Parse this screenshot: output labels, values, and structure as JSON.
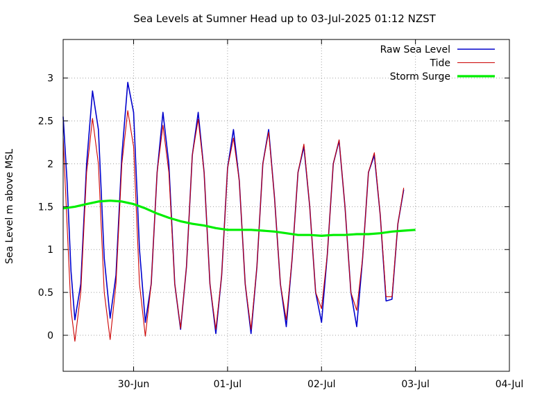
{
  "chart_data": {
    "type": "line",
    "title": "Sea Levels at Sumner Head up to 03-Jul-2025 01:12 NZST",
    "ylabel": "Sea Level m above MSL",
    "xlabel": "",
    "xlim": [
      "2025-06-29 06:00",
      "2025-07-04 00:00"
    ],
    "ylim": [
      -0.42,
      3.45
    ],
    "yticks": [
      0,
      0.5,
      1,
      1.5,
      2,
      2.5,
      3
    ],
    "xticks": [
      {
        "date": "2025-06-30 00:00",
        "label": "30-Jun"
      },
      {
        "date": "2025-07-01 00:00",
        "label": "01-Jul"
      },
      {
        "date": "2025-07-02 00:00",
        "label": "02-Jul"
      },
      {
        "date": "2025-07-03 00:00",
        "label": "03-Jul"
      },
      {
        "date": "2025-07-04 00:00",
        "label": "04-Jul"
      }
    ],
    "grid": true,
    "legend_position": "top-right",
    "series": [
      {
        "name": "Raw Sea Level",
        "color": "#0000cc",
        "points": [
          [
            "2025-06-29 06:00",
            2.55
          ],
          [
            "2025-06-29 07:00",
            1.8
          ],
          [
            "2025-06-29 08:00",
            0.75
          ],
          [
            "2025-06-29 09:00",
            0.18
          ],
          [
            "2025-06-29 10:30",
            0.6
          ],
          [
            "2025-06-29 12:00",
            2.0
          ],
          [
            "2025-06-29 13:30",
            2.85
          ],
          [
            "2025-06-29 15:00",
            2.4
          ],
          [
            "2025-06-29 16:30",
            0.9
          ],
          [
            "2025-06-29 18:00",
            0.2
          ],
          [
            "2025-06-29 19:30",
            0.7
          ],
          [
            "2025-06-29 21:00",
            2.1
          ],
          [
            "2025-06-29 22:30",
            2.95
          ],
          [
            "2025-06-30 00:00",
            2.6
          ],
          [
            "2025-06-30 01:30",
            1.0
          ],
          [
            "2025-06-30 03:00",
            0.15
          ],
          [
            "2025-06-30 04:30",
            0.6
          ],
          [
            "2025-06-30 06:00",
            1.9
          ],
          [
            "2025-06-30 07:30",
            2.6
          ],
          [
            "2025-06-30 09:00",
            2.0
          ],
          [
            "2025-06-30 10:30",
            0.6
          ],
          [
            "2025-06-30 12:00",
            0.07
          ],
          [
            "2025-06-30 13:30",
            0.8
          ],
          [
            "2025-06-30 15:00",
            2.1
          ],
          [
            "2025-06-30 16:30",
            2.6
          ],
          [
            "2025-06-30 18:00",
            1.9
          ],
          [
            "2025-06-30 19:30",
            0.6
          ],
          [
            "2025-06-30 21:00",
            0.02
          ],
          [
            "2025-06-30 22:30",
            0.7
          ],
          [
            "2025-07-01 00:00",
            1.95
          ],
          [
            "2025-07-01 01:30",
            2.4
          ],
          [
            "2025-07-01 03:00",
            1.8
          ],
          [
            "2025-07-01 04:30",
            0.6
          ],
          [
            "2025-07-01 06:00",
            0.02
          ],
          [
            "2025-07-01 07:30",
            0.8
          ],
          [
            "2025-07-01 09:00",
            2.0
          ],
          [
            "2025-07-01 10:30",
            2.4
          ],
          [
            "2025-07-01 12:00",
            1.6
          ],
          [
            "2025-07-01 13:30",
            0.6
          ],
          [
            "2025-07-01 15:00",
            0.1
          ],
          [
            "2025-07-01 16:30",
            0.9
          ],
          [
            "2025-07-01 18:00",
            1.9
          ],
          [
            "2025-07-01 19:30",
            2.2
          ],
          [
            "2025-07-01 21:00",
            1.5
          ],
          [
            "2025-07-01 22:30",
            0.5
          ],
          [
            "2025-07-02 00:00",
            0.15
          ],
          [
            "2025-07-02 01:30",
            0.95
          ],
          [
            "2025-07-02 03:00",
            2.0
          ],
          [
            "2025-07-02 04:30",
            2.27
          ],
          [
            "2025-07-02 06:00",
            1.5
          ],
          [
            "2025-07-02 07:30",
            0.5
          ],
          [
            "2025-07-02 09:00",
            0.1
          ],
          [
            "2025-07-02 10:30",
            0.9
          ],
          [
            "2025-07-02 12:00",
            1.9
          ],
          [
            "2025-07-02 13:30",
            2.1
          ],
          [
            "2025-07-02 15:00",
            1.4
          ],
          [
            "2025-07-02 16:30",
            0.4
          ],
          [
            "2025-07-02 18:00",
            0.42
          ],
          [
            "2025-07-02 19:30",
            1.3
          ],
          [
            "2025-07-02 21:00",
            1.7
          ]
        ]
      },
      {
        "name": "Tide",
        "color": "#cc0000",
        "points": [
          [
            "2025-06-29 06:00",
            2.3
          ],
          [
            "2025-06-29 07:00",
            1.3
          ],
          [
            "2025-06-29 08:00",
            0.3
          ],
          [
            "2025-06-29 09:00",
            -0.07
          ],
          [
            "2025-06-29 10:30",
            0.5
          ],
          [
            "2025-06-29 12:00",
            1.9
          ],
          [
            "2025-06-29 13:30",
            2.53
          ],
          [
            "2025-06-29 15:00",
            2.0
          ],
          [
            "2025-06-29 16:30",
            0.5
          ],
          [
            "2025-06-29 18:00",
            -0.05
          ],
          [
            "2025-06-29 19:30",
            0.6
          ],
          [
            "2025-06-29 21:00",
            2.0
          ],
          [
            "2025-06-29 22:30",
            2.62
          ],
          [
            "2025-06-30 00:00",
            2.2
          ],
          [
            "2025-06-30 01:30",
            0.6
          ],
          [
            "2025-06-30 03:00",
            -0.01
          ],
          [
            "2025-06-30 04:30",
            0.6
          ],
          [
            "2025-06-30 06:00",
            1.9
          ],
          [
            "2025-06-30 07:30",
            2.45
          ],
          [
            "2025-06-30 09:00",
            1.9
          ],
          [
            "2025-06-30 10:30",
            0.6
          ],
          [
            "2025-06-30 12:00",
            0.08
          ],
          [
            "2025-06-30 13:30",
            0.8
          ],
          [
            "2025-06-30 15:00",
            2.1
          ],
          [
            "2025-06-30 16:30",
            2.52
          ],
          [
            "2025-06-30 18:00",
            1.9
          ],
          [
            "2025-06-30 19:30",
            0.6
          ],
          [
            "2025-06-30 21:00",
            0.07
          ],
          [
            "2025-06-30 22:30",
            0.7
          ],
          [
            "2025-07-01 00:00",
            1.95
          ],
          [
            "2025-07-01 01:30",
            2.3
          ],
          [
            "2025-07-01 03:00",
            1.8
          ],
          [
            "2025-07-01 04:30",
            0.6
          ],
          [
            "2025-07-01 06:00",
            0.07
          ],
          [
            "2025-07-01 07:30",
            0.8
          ],
          [
            "2025-07-01 09:00",
            2.0
          ],
          [
            "2025-07-01 10:30",
            2.37
          ],
          [
            "2025-07-01 12:00",
            1.6
          ],
          [
            "2025-07-01 13:30",
            0.6
          ],
          [
            "2025-07-01 15:00",
            0.18
          ],
          [
            "2025-07-01 16:30",
            0.9
          ],
          [
            "2025-07-01 18:00",
            1.9
          ],
          [
            "2025-07-01 19:30",
            2.23
          ],
          [
            "2025-07-01 21:00",
            1.5
          ],
          [
            "2025-07-01 22:30",
            0.5
          ],
          [
            "2025-07-02 00:00",
            0.31
          ],
          [
            "2025-07-02 01:30",
            0.95
          ],
          [
            "2025-07-02 03:00",
            2.0
          ],
          [
            "2025-07-02 04:30",
            2.28
          ],
          [
            "2025-07-02 06:00",
            1.5
          ],
          [
            "2025-07-02 07:30",
            0.5
          ],
          [
            "2025-07-02 09:00",
            0.29
          ],
          [
            "2025-07-02 10:30",
            0.9
          ],
          [
            "2025-07-02 12:00",
            1.9
          ],
          [
            "2025-07-02 13:30",
            2.13
          ],
          [
            "2025-07-02 15:00",
            1.4
          ],
          [
            "2025-07-02 16:30",
            0.45
          ],
          [
            "2025-07-02 18:00",
            0.45
          ],
          [
            "2025-07-02 19:30",
            1.3
          ],
          [
            "2025-07-02 21:00",
            1.72
          ]
        ]
      },
      {
        "name": "Storm Surge",
        "color": "#00ee00",
        "points": [
          [
            "2025-06-29 06:00",
            1.48
          ],
          [
            "2025-06-29 09:00",
            1.5
          ],
          [
            "2025-06-29 12:00",
            1.53
          ],
          [
            "2025-06-29 15:00",
            1.56
          ],
          [
            "2025-06-29 18:00",
            1.57
          ],
          [
            "2025-06-29 21:00",
            1.56
          ],
          [
            "2025-06-30 00:00",
            1.53
          ],
          [
            "2025-06-30 03:00",
            1.48
          ],
          [
            "2025-06-30 06:00",
            1.42
          ],
          [
            "2025-06-30 09:00",
            1.37
          ],
          [
            "2025-06-30 12:00",
            1.33
          ],
          [
            "2025-06-30 15:00",
            1.3
          ],
          [
            "2025-06-30 18:00",
            1.28
          ],
          [
            "2025-06-30 21:00",
            1.25
          ],
          [
            "2025-07-01 00:00",
            1.23
          ],
          [
            "2025-07-01 03:00",
            1.23
          ],
          [
            "2025-07-01 06:00",
            1.23
          ],
          [
            "2025-07-01 09:00",
            1.22
          ],
          [
            "2025-07-01 12:00",
            1.21
          ],
          [
            "2025-07-01 15:00",
            1.19
          ],
          [
            "2025-07-01 18:00",
            1.17
          ],
          [
            "2025-07-01 21:00",
            1.17
          ],
          [
            "2025-07-02 00:00",
            1.16
          ],
          [
            "2025-07-02 03:00",
            1.17
          ],
          [
            "2025-07-02 06:00",
            1.17
          ],
          [
            "2025-07-02 09:00",
            1.18
          ],
          [
            "2025-07-02 12:00",
            1.18
          ],
          [
            "2025-07-02 15:00",
            1.19
          ],
          [
            "2025-07-02 18:00",
            1.21
          ],
          [
            "2025-07-02 21:00",
            1.22
          ],
          [
            "2025-07-03 00:00",
            1.23
          ]
        ]
      }
    ]
  }
}
